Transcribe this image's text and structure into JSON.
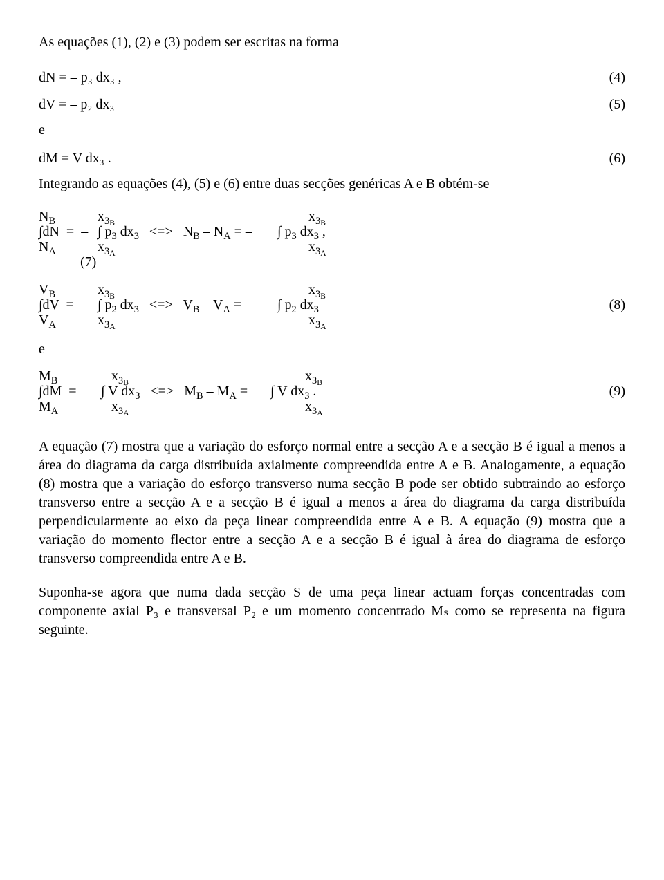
{
  "intro": "As equações (1), (2) e (3) podem ser escritas na forma",
  "eq4": {
    "body": "dN = – p₃ dx₃ ,",
    "num": "(4)"
  },
  "eq5": {
    "body": "dV = – p₂ dx₃",
    "num": "(5)"
  },
  "e_word": "e",
  "eq6": {
    "body": "dM = V dx₃ .",
    "num": "(6)"
  },
  "intro2": "Integrando as equações (4), (5) e (6) entre duas secções genéricas A e B obtém-se",
  "block7": {
    "row_top": {
      "c1": "N_B",
      "c2": "x_3B",
      "c3": "x_3B"
    },
    "row_mid": {
      "c1": "∫dN  =  –",
      "c2": "∫ p₃ dx₃   <=>   N_B – N_A = –",
      "c3": "∫ p₃ dx₃ ,",
      "num": ""
    },
    "row_bot": {
      "c1": "N_A",
      "c2": "x_3A",
      "c3": "x_3A"
    },
    "row_post": "            (7)"
  },
  "block8": {
    "row_top": {
      "c1": "V_B",
      "c2": "x_3B",
      "c3": "x_3B"
    },
    "row_mid": {
      "c1": "∫dV  =  –",
      "c2": "∫ p₂ dx₃   <=>   V_B – V_A = –",
      "c3": "∫ p₂ dx₃",
      "num": "(8)"
    },
    "row_bot": {
      "c1": "V_A",
      "c2": "x_3A",
      "c3": "x_3A"
    }
  },
  "block9": {
    "row_top": {
      "c1": "M_B",
      "c2": "x_3B",
      "c3": "x_3B"
    },
    "row_mid": {
      "c1": "∫dM  =",
      "c2": "∫ V dx₃   <=>   M_B – M_A =",
      "c3": "∫ V dx₃ .",
      "num": "(9)"
    },
    "row_bot": {
      "c1": "M_A",
      "c2": "x_3A",
      "c3": "x_3A"
    }
  },
  "para_main": "A equação (7) mostra que a variação do esforço normal entre a secção A e a secção B é igual a menos a área do diagrama da carga distribuída axialmente compreendida entre A e B. Analogamente, a equação (8) mostra que a variação do esforço transverso numa secção B pode ser obtido subtraindo ao esforço transverso entre a secção A e a secção B é igual a menos a área do diagrama da carga distribuída perpendicularmente ao eixo da peça linear compreendida entre A e B. A equação (9) mostra que a variação do momento flector entre a secção A e a secção B é igual à área do diagrama de esforço transverso compreendida entre A e B.",
  "para_last": "Suponha-se agora que numa dada secção S de uma peça linear actuam forças concentradas com componente axial P₃ e transversal P₂ e um momento concentrado Mₛ como se representa na figura seguinte."
}
